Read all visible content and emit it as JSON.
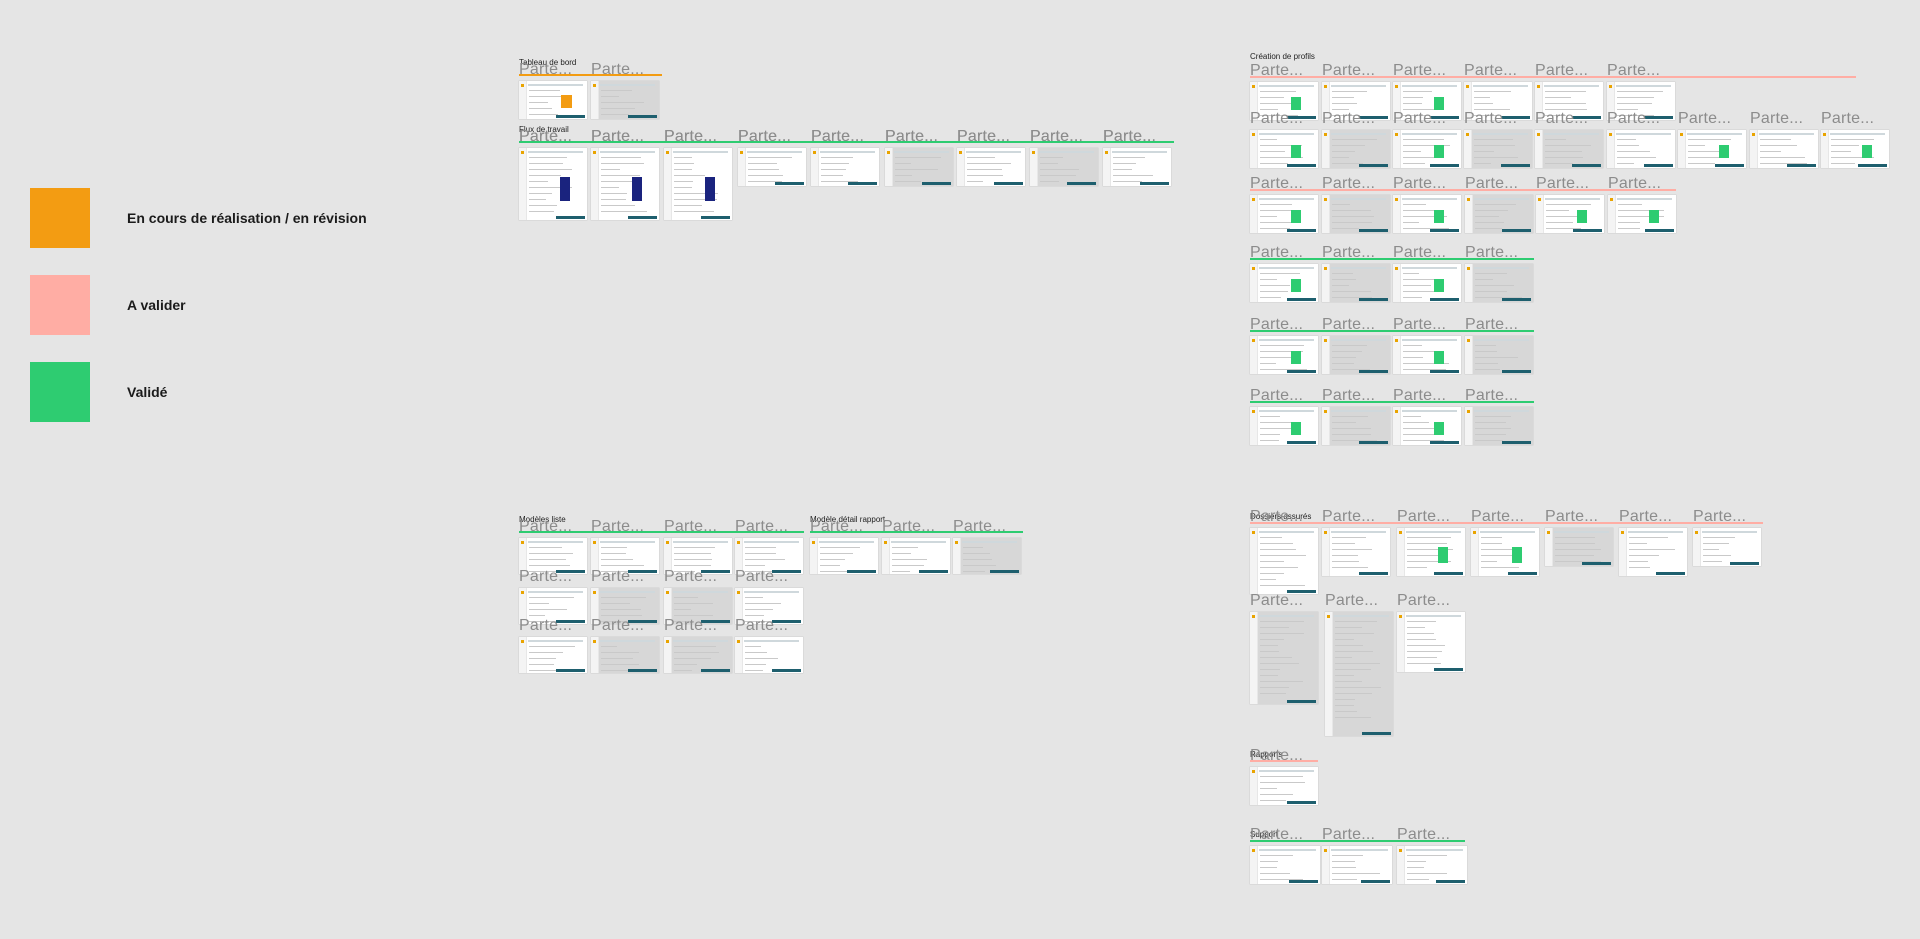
{
  "legend": [
    {
      "label": "En cours de réalisation / en révision",
      "color": "#f39c12"
    },
    {
      "label": "A valider",
      "color": "#ffada4"
    },
    {
      "label": "Validé",
      "color": "#2ecc71"
    }
  ],
  "colors": {
    "orange": "#f39c12",
    "pink": "#ffada4",
    "green": "#2ecc71",
    "teal": "#1e5f6e",
    "navy": "#1a237e"
  },
  "frame_label": "Parte...",
  "sections": [
    {
      "title": "Tableau de bord",
      "status": "orange",
      "thumbs": 2
    },
    {
      "title": "Flux de travail",
      "status": "green",
      "thumbs": 9
    },
    {
      "title": "Modèles liste",
      "status": "green",
      "thumbs": 12
    },
    {
      "title": "Modèle détail rapport",
      "status": "green",
      "thumbs": 3
    },
    {
      "title": "Création de profils",
      "status": "pink",
      "thumbs": 6
    },
    {
      "title": "Dossiers assurés",
      "status": "pink",
      "thumbs": 10
    },
    {
      "title": "Rapports",
      "status": "pink",
      "thumbs": 1
    },
    {
      "title": "Support",
      "status": "green",
      "thumbs": 3
    }
  ]
}
